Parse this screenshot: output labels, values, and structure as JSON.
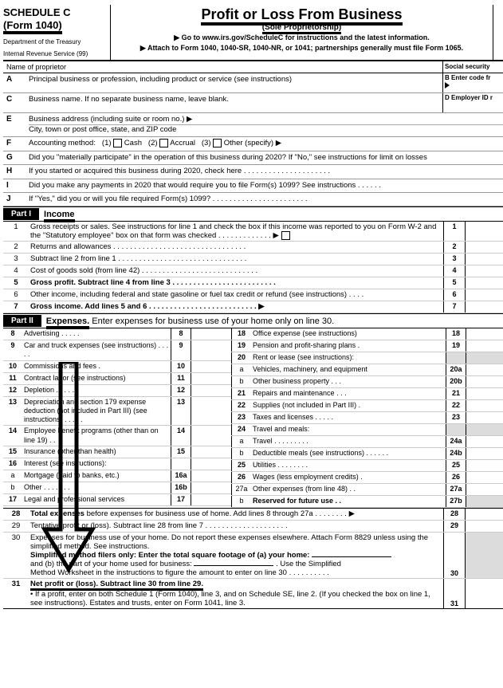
{
  "header": {
    "schedule": "SCHEDULE C",
    "form": "(Form 1040)",
    "dept": "Department of the Treasury",
    "irs": "Internal Revenue Service (99)",
    "title": "Profit or Loss From Business",
    "subtitle": "(Sole Proprietorship)",
    "goto": "▶ Go to www.irs.gov/ScheduleC for instructions and the latest information.",
    "attach": "▶ Attach to Form 1040, 1040-SR, 1040-NR, or 1041; partnerships generally must file Form 1065."
  },
  "labels": {
    "name_of_proprietor": "Name of proprietor",
    "ssn": "Social security",
    "A": "Principal business or profession, including product or service (see instructions)",
    "B": "B  Enter code fr",
    "C": "Business name. If no separate business name, leave blank.",
    "D": "D  Employer ID r",
    "E1": "Business address (including suite or room no.) ▶",
    "E2": "City, town or post office, state, and ZIP code",
    "F": "Accounting method:",
    "F1": "Cash",
    "F2": "Accrual",
    "F3": "Other (specify) ▶",
    "G": "Did you \"materially participate\" in the operation of this business during 2020? If \"No,\" see instructions for limit on losses",
    "H": "If you started or acquired this business during 2020, check here  .   .   .   .   .   .   .   .   .   .   .   .   .   .   .   .   .   .   .   .   .",
    "I": "Did you make any payments in 2020 that would require you to file Form(s) 1099? See instructions   .   .   .   .   .   .",
    "J": "If \"Yes,\" did you or will you file required Form(s) 1099?   .   .   .   .   .   .   .   .   .   .   .   .   .   .   .   .   .   .   .   .   .   .   ."
  },
  "part1": {
    "tag": "Part I",
    "title": "Income"
  },
  "income": {
    "1": "Gross receipts or sales. See instructions for line 1 and check the box if this income was reported to you on Form W-2 and the \"Statutory employee\" box on that form was checked   .   .   .   .   .   .   .   .   .   .   .   .   . ▶",
    "2": "Returns and allowances   .   .   .   .   .   .   .   .   .   .   .   .   .   .   .   .   .   .   .   .   .   .   .   .   .   .   .   .   .   .   .   .",
    "3": "Subtract line 2 from line 1   .   .   .   .   .   .   .   .   .   .   .   .   .   .   .   .   .   .   .   .   .   .   .   .   .   .   .   .   .   .   .",
    "4": "Cost of goods sold (from line 42)   .   .   .   .   .   .   .   .   .   .   .   .   .   .   .   .   .   .   .   .   .   .   .   .   .   .   .   .",
    "5": "Gross profit.  Subtract line 4 from line 3   .   .   .   .   .   .   .   .   .   .   .   .   .   .   .   .   .   .   .   .   .   .   .   .   .",
    "6": "Other income, including federal and state gasoline or fuel tax credit or refund (see instructions)    .   .   .   .",
    "7": "Gross income.  Add lines 5 and 6   .   .   .   .   .   .   .   .   .   .   .   .   .   .   .   .   .   .   .   .   .   .   .   .   .   . ▶"
  },
  "part2": {
    "tag": "Part II",
    "title": "Expenses.",
    "note": " Enter expenses for business use of your home only on line 30."
  },
  "exp_left": [
    {
      "n": "8",
      "t": "Advertising   .   .   .   .   .",
      "b": "8"
    },
    {
      "n": "9",
      "t": "Car and truck expenses (see instructions)   .   .   .   .   .",
      "b": "9"
    },
    {
      "n": "10",
      "t": "Commissions and fees   .",
      "b": "10"
    },
    {
      "n": "11",
      "t": "Contract labor (see instructions)",
      "b": "11"
    },
    {
      "n": "12",
      "t": "Depletion   .   .   .   .   .   .",
      "b": "12"
    },
    {
      "n": "13",
      "t": "Depreciation and section 179 expense deduction (not included in Part III) (see instructions)   .   .   .   .   .",
      "b": "13"
    },
    {
      "n": "14",
      "t": "Employee benefit programs (other than on line 19)  .   .",
      "b": "14"
    },
    {
      "n": "15",
      "t": "Insurance (other than health)",
      "b": "15"
    },
    {
      "n": "16",
      "t": "Interest (see instructions):",
      "b": "",
      "nobox": true
    },
    {
      "n": "a",
      "t": "Mortgage (paid to banks, etc.)",
      "b": "16a"
    },
    {
      "n": "b",
      "t": "Other   .   .   .   .   .   .   .",
      "b": "16b"
    },
    {
      "n": "17",
      "t": "Legal and professional services",
      "b": "17"
    }
  ],
  "exp_right": [
    {
      "n": "18",
      "t": "Office expense (see instructions)",
      "b": "18"
    },
    {
      "n": "19",
      "t": "Pension and profit-sharing plans  .",
      "b": "19"
    },
    {
      "n": "20",
      "t": "Rent or lease (see instructions):",
      "b": "",
      "nobox": true,
      "gray": true
    },
    {
      "n": "a",
      "t": "Vehicles, machinery, and equipment",
      "b": "20a"
    },
    {
      "n": "b",
      "t": "Other business property   .   .   .",
      "b": "20b"
    },
    {
      "n": "21",
      "t": "Repairs and maintenance .   .   .",
      "b": "21"
    },
    {
      "n": "22",
      "t": "Supplies (not included in Part III) .",
      "b": "22"
    },
    {
      "n": "23",
      "t": "Taxes and licenses .   .   .   .   .",
      "b": "23"
    },
    {
      "n": "24",
      "t": "Travel and meals:",
      "b": "",
      "nobox": true,
      "gray": true
    },
    {
      "n": "a",
      "t": "Travel .   .   .   .   .   .   .   .   .",
      "b": "24a"
    },
    {
      "n": "b",
      "t": "Deductible meals (see instructions)   .   .   .   .   .   .",
      "b": "24b"
    },
    {
      "n": "25",
      "t": "Utilities   .   .   .   .   .   .   .   .",
      "b": "25"
    },
    {
      "n": "26",
      "t": "Wages (less employment credits) .",
      "b": "26"
    },
    {
      "n": "27a",
      "t": "Other expenses (from line 48) .   .",
      "b": "27a"
    },
    {
      "n": "b",
      "t": "Reserved for future use   .   .",
      "b": "27b",
      "gray": true,
      "bold": true
    }
  ],
  "bottom": {
    "28": "Total expenses before expenses for business use of home. Add lines 8 through 27a   .   .   .   .   .   .   .   . ▶",
    "29": "Tentative profit or (loss). Subtract line 28 from line 7 .   .   .   .   .   .   .   .   .   .   .   .   .   .   .   .   .   .   .   .",
    "30a": "Expenses for business use of your home. Do not report these expenses elsewhere. Attach Form 8829 unless using the simplified method. See instructions.",
    "30b": "Simplified method filers only: Enter the total square footage of (a) your home:",
    "30c": "and (b) the part of your home used for business:",
    "30d": ". Use the Simplified",
    "30e": "Method Worksheet in the instructions to figure the amount to enter on line 30   .   .   .   .   .   .   .   .   .   .",
    "31": "Net profit or (loss).  Subtract line 30 from line 29.",
    "31a": "•  If a profit, enter on both Schedule 1 (Form 1040), line 3, and on Schedule SE, line 2. (If you checked the box on line 1, see instructions). Estates and trusts, enter on Form 1041, line 3."
  }
}
